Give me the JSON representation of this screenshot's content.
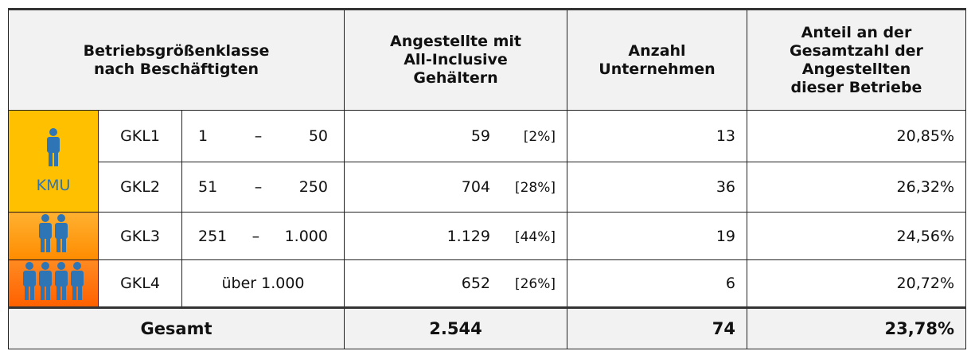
{
  "header": {
    "class": [
      "Betriebsgrößenklasse",
      "nach Beschäftigten"
    ],
    "employees": [
      "Angestellte mit",
      "All-Inclusive",
      "Gehältern"
    ],
    "companies": [
      "Anzahl",
      "Unternehmen"
    ],
    "share": [
      "Anteil an der",
      "Gesamtzahl der",
      "Angestellten",
      "dieser Betriebe"
    ]
  },
  "kmu_label": "KMU",
  "rows": [
    {
      "class": "GKL1",
      "range": [
        "1",
        "–",
        "50"
      ],
      "employees": "59",
      "employees_share": "[2%]",
      "companies": "13",
      "share": "20,85%"
    },
    {
      "class": "GKL2",
      "range": [
        "51",
        "–",
        "250"
      ],
      "employees": "704",
      "employees_share": "[28%]",
      "companies": "36",
      "share": "26,32%"
    },
    {
      "class": "GKL3",
      "range": [
        "251",
        "–",
        "1.000"
      ],
      "employees": "1.129",
      "employees_share": "[44%]",
      "companies": "19",
      "share": "24,56%"
    },
    {
      "class": "GKL4",
      "range": [
        "über 1.000"
      ],
      "employees": "652",
      "employees_share": "[26%]",
      "companies": "6",
      "share": "20,72%"
    }
  ],
  "total": {
    "label": "Gesamt",
    "employees": "2.544",
    "companies": "74",
    "share": "23,78%"
  }
}
